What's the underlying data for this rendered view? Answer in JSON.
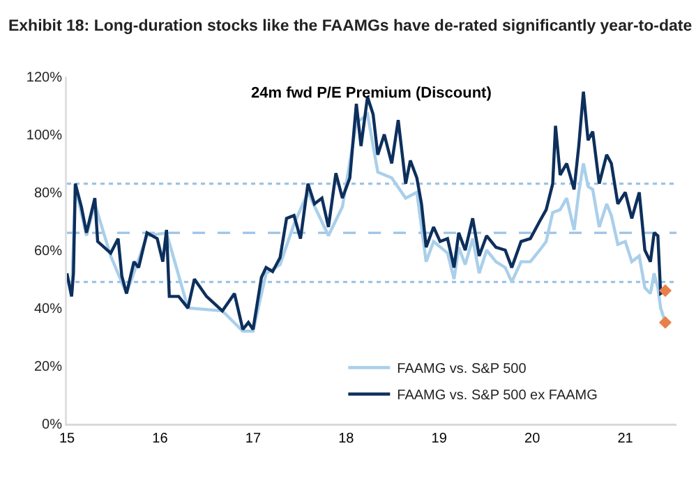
{
  "chart_data": {
    "type": "line",
    "title": "Exhibit 18: Long-duration stocks like the FAAMGs have de-rated significantly year-to-date",
    "subtitle": "24m fwd P/E Premium (Discount)",
    "xlim": [
      15,
      21.55
    ],
    "xticks": [
      15,
      16,
      17,
      18,
      19,
      20,
      21
    ],
    "ylim": [
      0,
      120
    ],
    "yticks": [
      {
        "value": 0,
        "label": "0%"
      },
      {
        "value": 20,
        "label": "20%"
      },
      {
        "value": 40,
        "label": "40%"
      },
      {
        "value": 60,
        "label": "60%"
      },
      {
        "value": 80,
        "label": "80%"
      },
      {
        "value": 100,
        "label": "100%"
      },
      {
        "value": 120,
        "label": "120%"
      }
    ],
    "grid": false,
    "legend": "bottom",
    "marker": "none",
    "line_style": "solid",
    "ref_lines": [
      {
        "axis": "y",
        "value": 83,
        "color": "#9dc3e6",
        "line_style": "dotted"
      },
      {
        "axis": "y",
        "value": 66,
        "color": "#9dc3e6",
        "line_style": "dashed"
      },
      {
        "axis": "y",
        "value": 49,
        "color": "#9dc3e6",
        "line_style": "dotted"
      }
    ],
    "series": [
      {
        "name": "FAAMG vs. S&P 500",
        "color": "#a9cfea",
        "x": [
          15.0,
          15.05,
          15.09,
          15.21,
          15.3,
          15.47,
          15.64,
          15.86,
          16.07,
          16.3,
          16.67,
          16.89,
          17.0,
          17.14,
          17.29,
          17.44,
          17.59,
          17.81,
          17.96,
          18.11,
          18.23,
          18.34,
          18.49,
          18.64,
          18.76,
          18.86,
          18.94,
          19.09,
          19.16,
          19.21,
          19.28,
          19.36,
          19.43,
          19.51,
          19.61,
          19.71,
          19.78,
          19.88,
          19.98,
          20.08,
          20.15,
          20.22,
          20.3,
          20.37,
          20.45,
          20.5,
          20.55,
          20.6,
          20.65,
          20.72,
          20.8,
          20.85,
          20.92,
          21.0,
          21.07,
          21.15,
          21.21,
          21.27,
          21.31,
          21.35,
          21.38,
          21.43
        ],
        "values": [
          51,
          44,
          82,
          65,
          76,
          58,
          45,
          65,
          66,
          40,
          39,
          32,
          32,
          52,
          55,
          69,
          80,
          65,
          75,
          104,
          107,
          87,
          85,
          78,
          80,
          56,
          63,
          59,
          50,
          61,
          55,
          64,
          52,
          60,
          56,
          54,
          49,
          56,
          56,
          60,
          63,
          73,
          74,
          78,
          67,
          80,
          90,
          82,
          81,
          68,
          76,
          72,
          62,
          63,
          56,
          58,
          47,
          45,
          52,
          47,
          40,
          35
        ]
      },
      {
        "name": "FAAMG vs. S&P 500 ex FAAMG",
        "color": "#0d2f5c",
        "x": [
          15.0,
          15.05,
          15.07,
          15.09,
          15.155,
          15.21,
          15.3,
          15.33,
          15.47,
          15.55,
          15.59,
          15.64,
          15.72,
          15.77,
          15.86,
          15.97,
          16.03,
          16.07,
          16.1,
          16.2,
          16.3,
          16.37,
          16.5,
          16.67,
          16.8,
          16.89,
          16.95,
          17.0,
          17.09,
          17.14,
          17.21,
          17.29,
          17.36,
          17.44,
          17.51,
          17.59,
          17.66,
          17.74,
          17.81,
          17.89,
          17.96,
          18.04,
          18.11,
          18.16,
          18.23,
          18.29,
          18.34,
          18.41,
          18.49,
          18.56,
          18.64,
          18.69,
          18.76,
          18.81,
          18.86,
          18.94,
          19.01,
          19.09,
          19.16,
          19.21,
          19.28,
          19.36,
          19.43,
          19.51,
          19.61,
          19.71,
          19.78,
          19.88,
          19.98,
          20.08,
          20.15,
          20.22,
          20.25,
          20.3,
          20.37,
          20.45,
          20.5,
          20.55,
          20.6,
          20.65,
          20.72,
          20.8,
          20.85,
          20.92,
          21.0,
          21.07,
          21.15,
          21.21,
          21.27,
          21.31,
          21.35,
          21.38,
          21.43
        ],
        "values": [
          52,
          44,
          52,
          83,
          75,
          66,
          78,
          63,
          59,
          64,
          51,
          45,
          56,
          54,
          66,
          64,
          56,
          67,
          44,
          44,
          40,
          50,
          44,
          39,
          45,
          32.6,
          35,
          32.6,
          50.6,
          54,
          52.6,
          57.4,
          71,
          72,
          64,
          83,
          76,
          78,
          68,
          86.6,
          78,
          85,
          110.6,
          96,
          113,
          107,
          93,
          100,
          90,
          105,
          83,
          91,
          85,
          76,
          61,
          68,
          63,
          64,
          54,
          66,
          60,
          71,
          58,
          65,
          61,
          60,
          54,
          63,
          64,
          70,
          74,
          83,
          103,
          86,
          90,
          81,
          96,
          114.8,
          98,
          101,
          83,
          93,
          90,
          76,
          80,
          71,
          80,
          60,
          56,
          66,
          65,
          45,
          46
        ]
      },
      {
        "type": "scatter",
        "marker": "diamond",
        "color": "#e8804a",
        "x": [
          21.43,
          21.43
        ],
        "values": [
          46,
          35
        ]
      }
    ]
  }
}
